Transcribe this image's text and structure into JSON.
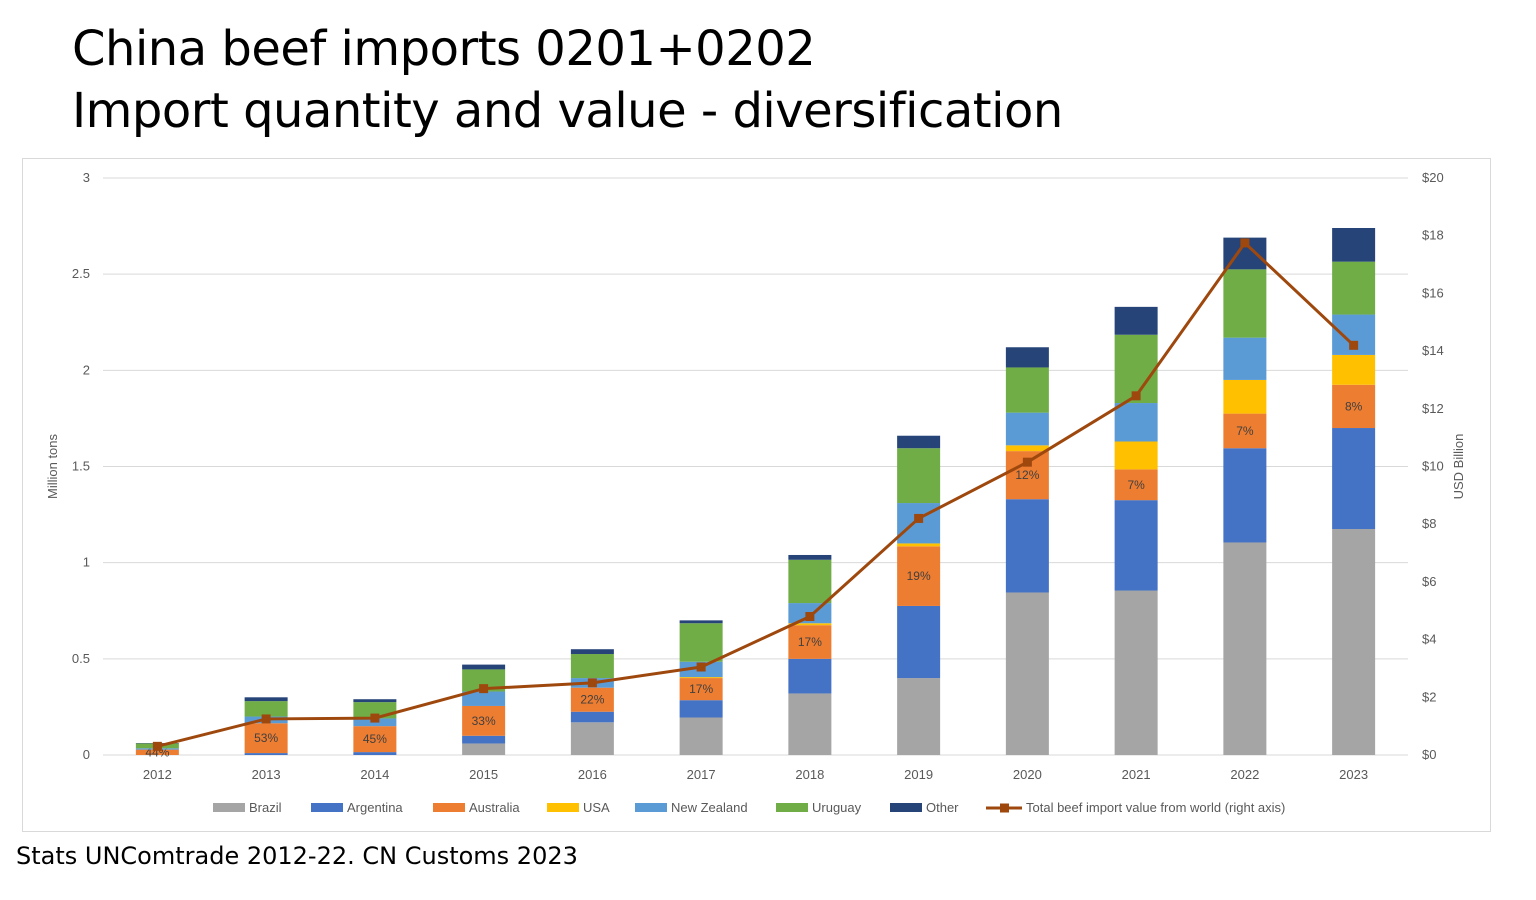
{
  "title": {
    "line1": "China beef imports 0201+0202",
    "line2": "Import quantity and value - diversification"
  },
  "source": "Stats UNComtrade 2012-22. CN Customs 2023",
  "chart_data": {
    "type": "bar",
    "stacked": true,
    "categories": [
      "2012",
      "2013",
      "2014",
      "2015",
      "2016",
      "2017",
      "2018",
      "2019",
      "2020",
      "2021",
      "2022",
      "2023"
    ],
    "ylabel": "Million tons",
    "ylim": [
      0,
      3
    ],
    "yticks": [
      "0",
      "0.5",
      "1",
      "1.5",
      "2",
      "2.5",
      "3"
    ],
    "y2label": "USD Billion",
    "y2lim": [
      0,
      20
    ],
    "y2ticks": [
      "$0",
      "$2",
      "$4",
      "$6",
      "$8",
      "$10",
      "$12",
      "$14",
      "$16",
      "$18",
      "$20"
    ],
    "grid": true,
    "legend_position": "bottom",
    "series": [
      {
        "name": "Brazil",
        "color": "#a5a5a5",
        "values": [
          0,
          0,
          0,
          0.06,
          0.17,
          0.195,
          0.32,
          0.4,
          0.845,
          0.855,
          1.105,
          1.175
        ]
      },
      {
        "name": "Argentina",
        "color": "#4472c4",
        "values": [
          0,
          0.01,
          0.015,
          0.04,
          0.055,
          0.09,
          0.18,
          0.375,
          0.485,
          0.47,
          0.49,
          0.525
        ]
      },
      {
        "name": "Australia",
        "color": "#ed7d31",
        "values": [
          0.028,
          0.155,
          0.135,
          0.155,
          0.125,
          0.115,
          0.175,
          0.31,
          0.25,
          0.16,
          0.18,
          0.225
        ]
      },
      {
        "name": "USA",
        "color": "#ffc000",
        "values": [
          0,
          0,
          0,
          0,
          0,
          0.005,
          0.01,
          0.015,
          0.03,
          0.145,
          0.175,
          0.155
        ]
      },
      {
        "name": "New Zealand",
        "color": "#5b9bd5",
        "values": [
          0.007,
          0.035,
          0.04,
          0.075,
          0.05,
          0.08,
          0.105,
          0.21,
          0.17,
          0.2,
          0.22,
          0.21
        ]
      },
      {
        "name": "Uruguay",
        "color": "#70ad47",
        "values": [
          0.025,
          0.08,
          0.085,
          0.115,
          0.125,
          0.2,
          0.225,
          0.285,
          0.235,
          0.355,
          0.355,
          0.275
        ]
      },
      {
        "name": "Other",
        "color": "#264478",
        "values": [
          0.002,
          0.02,
          0.015,
          0.025,
          0.025,
          0.015,
          0.025,
          0.065,
          0.105,
          0.145,
          0.165,
          0.175
        ]
      }
    ],
    "line_series": {
      "name": "Total beef import value from world (right axis)",
      "color": "#9e480e",
      "axis": "right",
      "values": [
        0.3,
        1.25,
        1.28,
        2.3,
        2.5,
        3.05,
        4.8,
        8.2,
        10.15,
        12.45,
        17.75,
        14.2
      ]
    },
    "data_labels": {
      "series": "Australia",
      "values": [
        "44%",
        "53%",
        "45%",
        "33%",
        "22%",
        "17%",
        "17%",
        "19%",
        "12%",
        "7%",
        "7%",
        "8%"
      ]
    }
  }
}
